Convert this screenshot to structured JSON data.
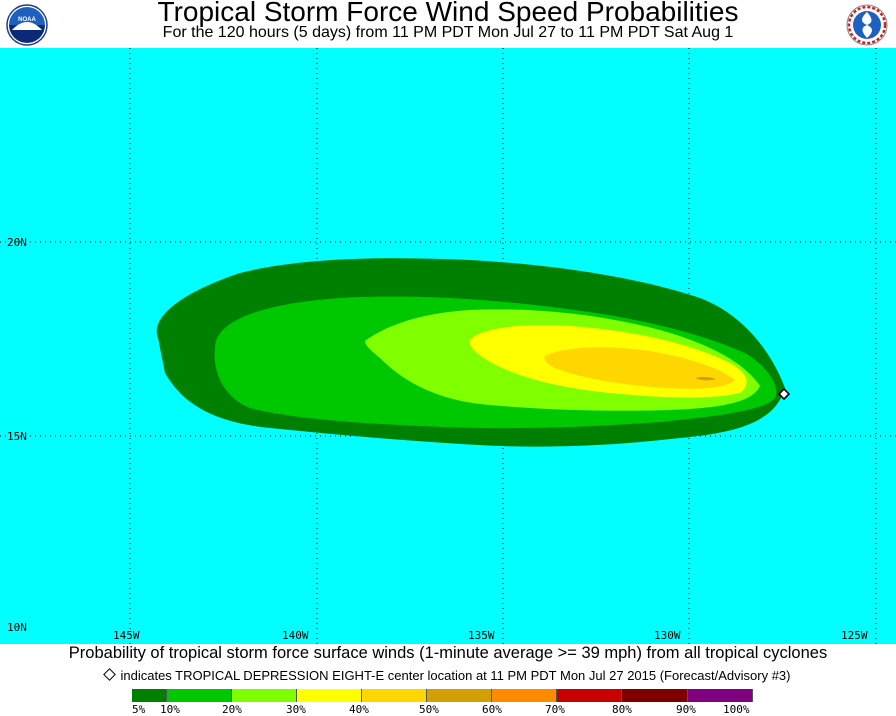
{
  "title": "Tropical Storm Force Wind Speed Probabilities",
  "subtitle": "For the 120 hours (5 days) from 11 PM PDT Mon Jul 27 to 11 PM PDT Sat Aug 1",
  "logos": {
    "left": "noaa-logo",
    "right": "nws-logo"
  },
  "map": {
    "background_color": "#00ffff",
    "lon_labels": [
      "145W",
      "140W",
      "135W",
      "130W",
      "125W"
    ],
    "lat_labels": [
      "20N",
      "15N",
      "10N"
    ],
    "storm_marker": {
      "lon": -127.1,
      "lat": 16.1
    }
  },
  "caption": "Probability of tropical storm force surface winds (1-minute average >= 39 mph) from all tropical cyclones",
  "note": "indicates TROPICAL DEPRESSION EIGHT-E center location at 11 PM PDT Mon Jul 27 2015 (Forecast/Advisory #3)",
  "legend": {
    "labels": [
      "5%",
      "10%",
      "20%",
      "30%",
      "40%",
      "50%",
      "60%",
      "70%",
      "80%",
      "90%",
      "100%"
    ],
    "colors": [
      "#008000",
      "#00c800",
      "#7fff00",
      "#ffff00",
      "#ffd700",
      "#d2a000",
      "#ff8c00",
      "#c80000",
      "#800000",
      "#800080"
    ]
  },
  "probability_contours": [
    {
      "level": "5%",
      "color": "#008000"
    },
    {
      "level": "10%",
      "color": "#00c800"
    },
    {
      "level": "20%",
      "color": "#7fff00"
    },
    {
      "level": "30%",
      "color": "#ffff00"
    },
    {
      "level": "40%",
      "color": "#ffd700"
    }
  ]
}
